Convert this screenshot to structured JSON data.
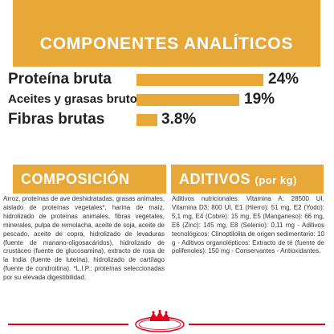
{
  "analytic": {
    "title": "COMPONENTES ANALÍTICOS",
    "rows": [
      {
        "label": "Proteína bruta",
        "value": "24%"
      },
      {
        "label": "Aceites y grasas brutos",
        "value": "19%"
      },
      {
        "label": "Fibras brutas",
        "value": "3.8%"
      }
    ]
  },
  "composition": {
    "title": "COMPOSICIÓN",
    "text": "Arroz, proteínas de ave deshidratadas, grasas animales, aislado de proteínas vegetales*, harina de maíz, hidrolizado de proteínas animales, fibras vegetales, minerales, pulpa de remolacha, aceite de soja, aceite de pescado, aceite de copra, hidrolizado de levaduras (fuente de manano-oligosacáridos), hidrolizado de crustáceo (fuente de glucosamina), extracto de rosa de la India (fuente de luteína), hidrolizado de cartílago (fuente de condroitina). *L.I.P.: proteínas seleccionadas por su elevada digestibilidad."
  },
  "additives": {
    "title": "ADITIVOS",
    "subtitle": "(por kg)",
    "text": "Aditivos nutricionales: Vitamina A: 28500 UI, Vitamina D3: 800 UI, E1 (Hierro): 51 mg, E2 (Yodo): 5,1 mg, E4 (Cobre): 15 mg, E5 (Manganeso): 66 mg, E6 (Zinc): 145 mg, E8 (Selenio): 0,11 mg - Aditivos tecnológicos: Clinoptilolita de origen sedimentario: 10 g - Aditivos organolépticos: Extracto de té (fuente de polifenoles): 150 mg - Conservantes - Antioxidantes."
  },
  "colors": {
    "accent": "#e7a837",
    "brand_red": "#e2001a"
  },
  "icons": {
    "logo": "royal-canin-crown-logo"
  }
}
